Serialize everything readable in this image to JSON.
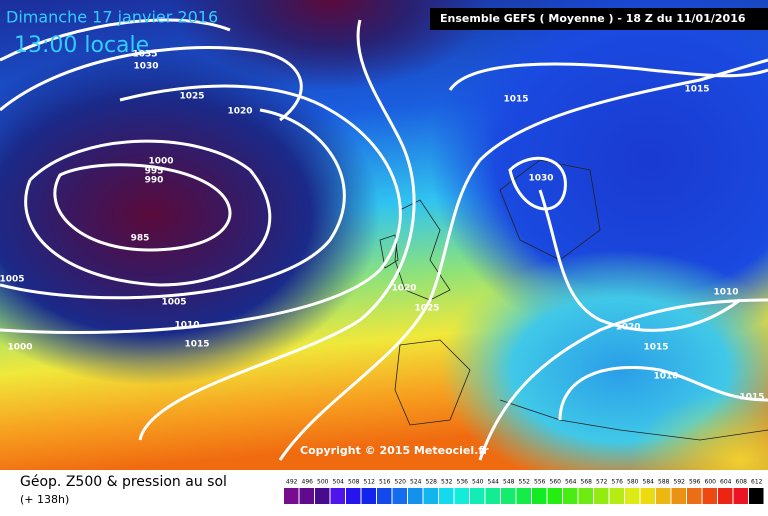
{
  "header": {
    "date": "Dimanche 17 janvier 2016",
    "time": "13:00 locale",
    "run": "Ensemble GEFS  ( Moyenne )  -  18 Z du 11/01/2016"
  },
  "isobar_labels": [
    1035,
    1030,
    1025,
    1020,
    1000,
    995,
    990,
    985,
    1005,
    1005,
    1010,
    1000,
    1015,
    1015,
    1015,
    1030,
    1020,
    1025,
    1010,
    1020,
    1015,
    1010,
    1015
  ],
  "copyright": "Copyright © 2015 Meteociel.fr",
  "footer": {
    "title": "Géop. Z500 & pression au sol",
    "lead": "(+ 138h)"
  },
  "scale": [
    492,
    496,
    500,
    504,
    508,
    512,
    516,
    520,
    524,
    528,
    532,
    536,
    540,
    544,
    548,
    552,
    556,
    560,
    564,
    568,
    572,
    576,
    580,
    584,
    588,
    592,
    596,
    600,
    604,
    608,
    612
  ]
}
